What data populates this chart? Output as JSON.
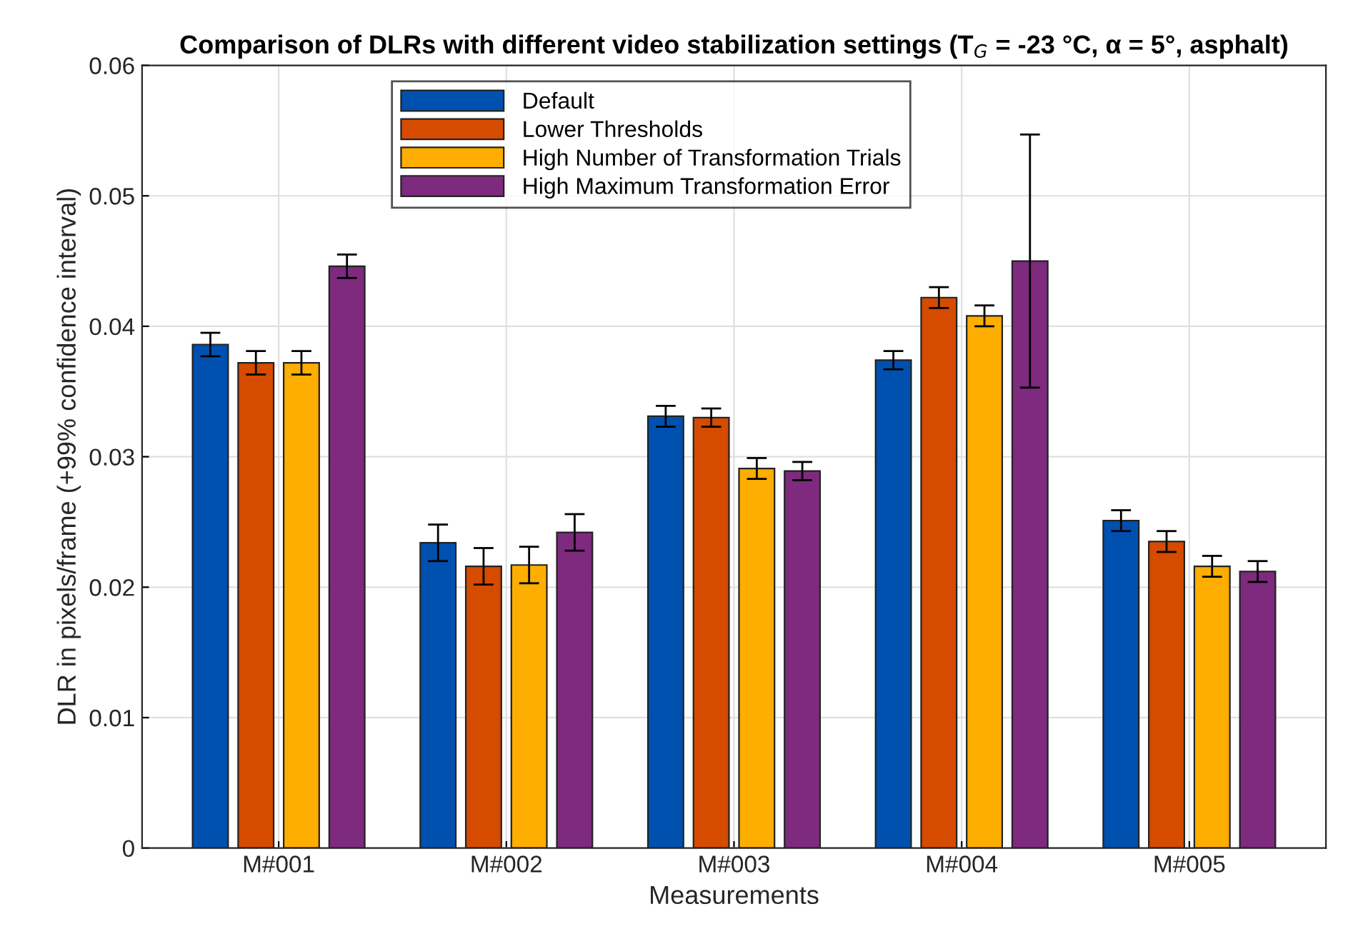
{
  "chart_data": {
    "type": "bar",
    "title": "Comparison of DLRs with different video stabilization settings (T$_{G}$ = -23 °C, α = 5°, asphalt)",
    "xlabel": "Measurements",
    "ylabel": "DLR in pixels/frame (+99% confidence interval)",
    "categories": [
      "M#001",
      "M#002",
      "M#003",
      "M#004",
      "M#005"
    ],
    "series": [
      {
        "name": "Default",
        "color": "#0050b0",
        "values": [
          0.0386,
          0.0234,
          0.0331,
          0.0374,
          0.0251
        ],
        "errors": [
          0.0009,
          0.0014,
          0.0008,
          0.0007,
          0.0008
        ]
      },
      {
        "name": "Lower Thresholds",
        "color": "#d54b00",
        "values": [
          0.0372,
          0.0216,
          0.033,
          0.0422,
          0.0235
        ],
        "errors": [
          0.0009,
          0.0014,
          0.0007,
          0.0008,
          0.0008
        ]
      },
      {
        "name": "High Number of Transformation Trials",
        "color": "#fdae00",
        "values": [
          0.0372,
          0.0217,
          0.0291,
          0.0408,
          0.0216
        ],
        "errors": [
          0.0009,
          0.0014,
          0.0008,
          0.0008,
          0.0008
        ]
      },
      {
        "name": "High Maximum Transformation Error",
        "color": "#7e2a7e",
        "values": [
          0.0446,
          0.0242,
          0.0289,
          0.045,
          0.0212
        ],
        "errors": [
          0.0009,
          0.0014,
          0.0007,
          0.0097,
          0.0008
        ]
      }
    ],
    "ylim": [
      0,
      0.06
    ],
    "yticks": [
      {
        "value": 0,
        "label": "0"
      },
      0.01,
      0.02,
      0.03,
      0.04,
      0.05,
      0.06
    ],
    "grid": true,
    "legend": "top"
  }
}
